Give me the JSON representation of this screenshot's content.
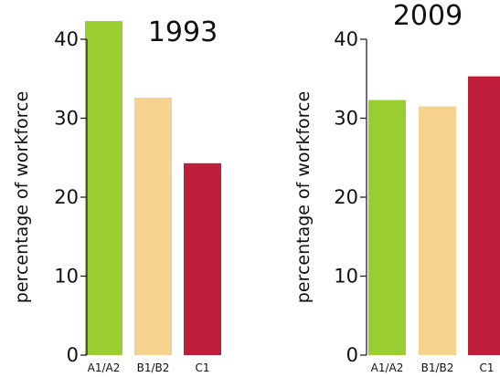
{
  "chart_data": [
    {
      "type": "bar",
      "title": "1993",
      "ylabel": "percentage of workforce",
      "xlabel": "",
      "categories": [
        "A1/A2",
        "B1/B2",
        "C1"
      ],
      "values": [
        42.3,
        32.6,
        24.3
      ],
      "colors": [
        "#9acd32",
        "#f5d28e",
        "#bf1e3a"
      ],
      "ylim": [
        0,
        40
      ],
      "yticks": [
        0,
        10,
        20,
        30,
        40
      ],
      "grid": false
    },
    {
      "type": "bar",
      "title": "2009",
      "ylabel": "percentage of workforce",
      "xlabel": "",
      "categories": [
        "A1/A2",
        "B1/B2",
        "C1"
      ],
      "values": [
        32.3,
        31.5,
        35.3
      ],
      "colors": [
        "#9acd32",
        "#f5d28e",
        "#bf1e3a"
      ],
      "ylim": [
        0,
        40
      ],
      "yticks": [
        0,
        10,
        20,
        30,
        40
      ],
      "grid": false
    }
  ]
}
